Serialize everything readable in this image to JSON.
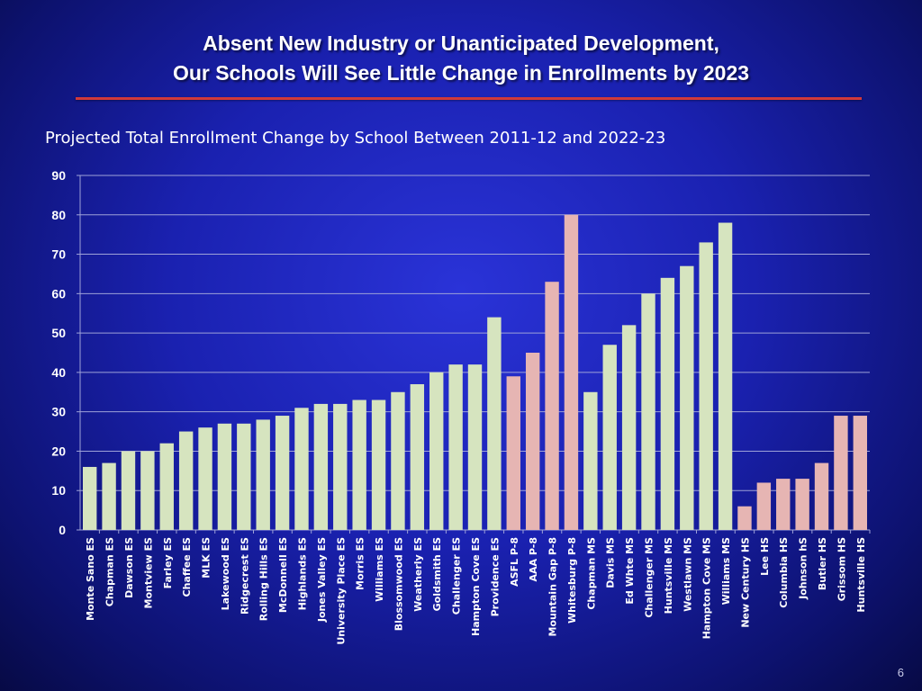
{
  "slide": {
    "title_line1": "Absent New Industry or Unanticipated Development,",
    "title_line2": "Our Schools Will See Little Change in Enrollments by 2023",
    "page_number": "6"
  },
  "colors": {
    "elementary_bar": "#d6e4bf",
    "pk8_bar": "#e6b5b3",
    "middle_bar": "#d6e4bf",
    "high_bar": "#e6b5b3",
    "gridline": "#9ea2d8",
    "text": "#ffffff"
  },
  "chart_data": {
    "type": "bar",
    "title": "Projected Total Enrollment Change by School Between 2011-12 and 2022-23",
    "xlabel": "",
    "ylabel": "",
    "ylim": [
      0,
      90
    ],
    "yticks": [
      0,
      10,
      20,
      30,
      40,
      50,
      60,
      70,
      80,
      90
    ],
    "grid": true,
    "legend": "none",
    "categories": [
      "Monte Sano ES",
      "Chapman ES",
      "Dawson ES",
      "Montview ES",
      "Farley ES",
      "Chaffee ES",
      "MLK ES",
      "Lakewood ES",
      "Ridgecrest ES",
      "Rolling Hills ES",
      "McDonnell ES",
      "Highlands ES",
      "Jones Valley ES",
      "University Place ES",
      "Morris ES",
      "Williams ES",
      "Blossomwood ES",
      "Weatherly ES",
      "Goldsmith ES",
      "Challenger ES",
      "Hampton Cove ES",
      "Providence ES",
      "ASFL P-8",
      "AAA P-8",
      "Mountain Gap P-8",
      "Whitesburg P-8",
      "Chapman MS",
      "Davis MS",
      "Ed Whte MS",
      "Challenger MS",
      "Huntsville MS",
      "Westlawn MS",
      "Hampton Cove MS",
      "Williams MS",
      "New Century HS",
      "Lee HS",
      "Columbia HS",
      "Johnson hS",
      "Butler HS",
      "Grissom HS",
      "Huntsville HS"
    ],
    "values": [
      16,
      17,
      20,
      20,
      22,
      25,
      26,
      27,
      27,
      28,
      29,
      31,
      32,
      32,
      33,
      33,
      35,
      37,
      40,
      42,
      42,
      54,
      39,
      45,
      63,
      80,
      35,
      47,
      52,
      60,
      64,
      67,
      73,
      78,
      6,
      12,
      13,
      13,
      17,
      29,
      29
    ],
    "groups": [
      "elementary",
      "elementary",
      "elementary",
      "elementary",
      "elementary",
      "elementary",
      "elementary",
      "elementary",
      "elementary",
      "elementary",
      "elementary",
      "elementary",
      "elementary",
      "elementary",
      "elementary",
      "elementary",
      "elementary",
      "elementary",
      "elementary",
      "elementary",
      "elementary",
      "elementary",
      "pk8",
      "pk8",
      "pk8",
      "pk8",
      "middle",
      "middle",
      "middle",
      "middle",
      "middle",
      "middle",
      "middle",
      "middle",
      "high",
      "high",
      "high",
      "high",
      "high",
      "high",
      "high"
    ]
  }
}
